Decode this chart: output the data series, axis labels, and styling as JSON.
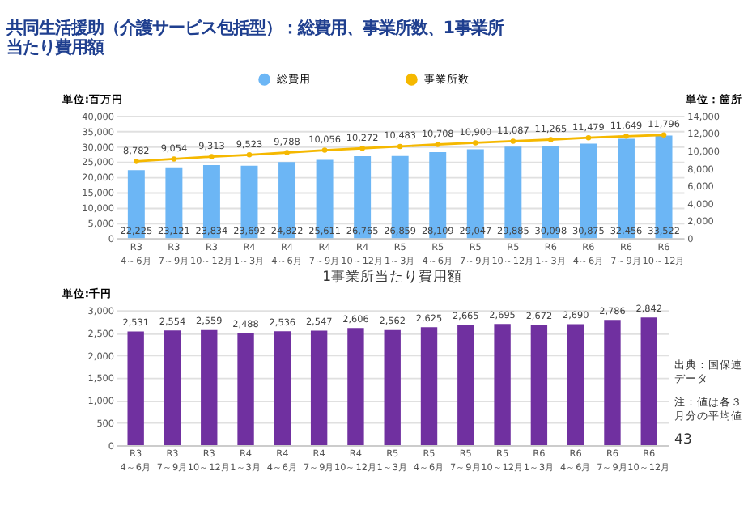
{
  "chart_data": [
    {
      "type": "bar",
      "title": "共同生活援助（介護サービス包括型）：総費用、事業所数、1事業所当たり費用額",
      "categories": [
        "R3\n4～6月",
        "R3\n7～9月",
        "R3\n10～12月",
        "R4\n1～3月",
        "R4\n4～6月",
        "R4\n7～9月",
        "R4\n10～12月",
        "R5\n1～3月",
        "R5\n4～6月",
        "R5\n7～9月",
        "R5\n10～12月",
        "R6\n1～3月",
        "R6\n4～6月",
        "R6\n7～9月",
        "R6\n10～12月"
      ],
      "series": [
        {
          "name": "総費用",
          "type": "bar",
          "color": "#6cb6f5",
          "values": [
            22225,
            23121,
            23834,
            23692,
            24822,
            25611,
            26765,
            26859,
            28109,
            29047,
            29885,
            30098,
            30875,
            32456,
            33522
          ],
          "value_labels": [
            "22,225",
            "23,121",
            "23,834",
            "23,692",
            "24,822",
            "25,611",
            "26,765",
            "26,859",
            "28,109",
            "29,047",
            "29,885",
            "30,098",
            "30,875",
            "32,456",
            "33,522"
          ]
        },
        {
          "name": "事業所数",
          "type": "line",
          "axis": "y2",
          "color": "#f5b800",
          "values": [
            8782,
            9054,
            9313,
            9523,
            9788,
            10056,
            10272,
            10483,
            10708,
            10900,
            11087,
            11265,
            11479,
            11649,
            11796
          ],
          "value_labels": [
            "8,782",
            "9,054",
            "9,313",
            "9,523",
            "9,788",
            "10,056",
            "10,272",
            "10,483",
            "10,708",
            "10,900",
            "11,087",
            "11,265",
            "11,479",
            "11,649",
            "11,796"
          ]
        }
      ],
      "ylabel": "単位:百万円",
      "y2label": "単位：箇所",
      "ylim": [
        0,
        40000
      ],
      "yticks": [
        0,
        {
          "value": 5000,
          "label": "5,000"
        },
        {
          "value": 10000,
          "label": "10,000"
        },
        {
          "value": 15000,
          "label": "15,000"
        },
        {
          "value": 20000,
          "label": "20,000"
        },
        {
          "value": 25000,
          "label": "25,000"
        },
        {
          "value": 30000,
          "label": "30,000"
        },
        {
          "value": 35000,
          "label": "35,000"
        },
        {
          "value": 40000,
          "label": "40,000"
        }
      ],
      "y2lim": [
        0,
        14000
      ],
      "y2ticks": [
        0,
        {
          "value": 2000,
          "label": "2,000"
        },
        {
          "value": 4000,
          "label": "4,000"
        },
        {
          "value": 6000,
          "label": "6,000"
        },
        {
          "value": 8000,
          "label": "8,000"
        },
        {
          "value": 10000,
          "label": "10,000"
        },
        {
          "value": 12000,
          "label": "12,000"
        },
        {
          "value": 14000,
          "label": "14,000"
        }
      ],
      "grid": "y",
      "legend": "top",
      "marker": "circle"
    },
    {
      "type": "bar",
      "title": "1事業所当たり費用額",
      "categories": [
        "R3\n4～6月",
        "R3\n7～9月",
        "R3\n10～12月",
        "R4\n1～3月",
        "R4\n4～6月",
        "R4\n7～9月",
        "R4\n10～12月",
        "R5\n1～3月",
        "R5\n4～6月",
        "R5\n7～9月",
        "R5\n10～12月",
        "R6\n1～3月",
        "R6\n4～6月",
        "R6\n7～9月",
        "R6\n10～12月"
      ],
      "series": [
        {
          "color": "#7030a0",
          "values": [
            2531,
            2554,
            2559,
            2488,
            2536,
            2547,
            2606,
            2562,
            2625,
            2665,
            2695,
            2672,
            2690,
            2786,
            2842
          ],
          "value_labels": [
            "2,531",
            "2,554",
            "2,559",
            "2,488",
            "2,536",
            "2,547",
            "2,606",
            "2,562",
            "2,625",
            "2,665",
            "2,695",
            "2,672",
            "2,690",
            "2,786",
            "2,842"
          ]
        }
      ],
      "ylabel": "単位:千円",
      "ylim": [
        0,
        3000
      ],
      "yticks": [
        0,
        500,
        {
          "value": 1000,
          "label": "1,000"
        },
        {
          "value": 1500,
          "label": "1,500"
        },
        {
          "value": 2000,
          "label": "2,000"
        },
        {
          "value": 2500,
          "label": "2,500"
        },
        {
          "value": 3000,
          "label": "3,000"
        }
      ],
      "grid": "y",
      "annotations": [
        "出典：国保連データ",
        "注：値は各３月分の平均値",
        "43"
      ]
    }
  ]
}
